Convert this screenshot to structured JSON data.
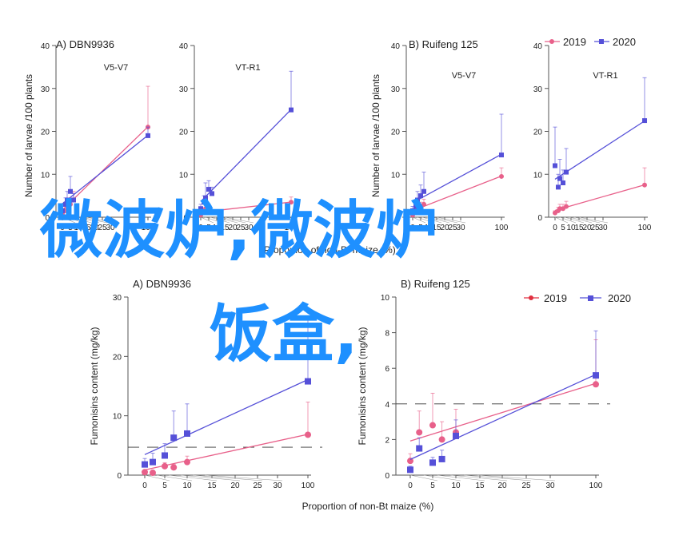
{
  "colors": {
    "series_2019": "#e8608a",
    "series_2020": "#5550d8",
    "overlay": "#1e90ff",
    "axis": "#555555"
  },
  "legend": {
    "items": [
      {
        "label": "2019",
        "color": "#e8608a",
        "marker": "circle"
      },
      {
        "label": "2020",
        "color": "#5550d8",
        "marker": "square"
      }
    ]
  },
  "overlay": {
    "line1": "微波炉,微波炉",
    "line2": "饭盒,"
  },
  "chart_data": [
    {
      "type": "line",
      "panel": "A) DBN9936",
      "subtitle": "V5-V7",
      "ylabel": "Number of larvae /100 plants",
      "xlabel": "Proportion of non-Bt maize (%)",
      "ylim": [
        0,
        40
      ],
      "yticks": [
        0,
        10,
        20,
        30,
        40
      ],
      "xticks": [
        "0",
        "5",
        "10",
        "15",
        "20",
        "25",
        "30",
        "100"
      ],
      "series": [
        {
          "name": "2019",
          "x": [
            0,
            2,
            3,
            5,
            7,
            100
          ],
          "y": [
            0.8,
            1.5,
            2.5,
            3.0,
            4.0,
            21.0
          ],
          "err": [
            0.6,
            1.0,
            1.2,
            1.5,
            2.0,
            9.5
          ]
        },
        {
          "name": "2020",
          "x": [
            0,
            2,
            3,
            5,
            7,
            100
          ],
          "y": [
            1.5,
            3.0,
            4.0,
            6.0,
            4.0,
            19.0
          ],
          "err": [
            1.0,
            1.5,
            2.0,
            3.5,
            1.5,
            2.0
          ]
        }
      ]
    },
    {
      "type": "line",
      "panel": "",
      "subtitle": "VT-R1",
      "ylabel": "",
      "xlabel": "Proportion of non-Bt maize (%)",
      "ylim": [
        0,
        40
      ],
      "yticks": [
        0,
        10,
        20,
        30,
        40
      ],
      "xticks": [
        "0",
        "5",
        "10",
        "15",
        "20",
        "25",
        "30",
        "100"
      ],
      "series": [
        {
          "name": "2019",
          "x": [
            0,
            2,
            3,
            5,
            7,
            100
          ],
          "y": [
            0.5,
            1.0,
            2.0,
            1.5,
            1.2,
            3.5
          ],
          "err": [
            0.3,
            0.6,
            0.8,
            0.5,
            0.5,
            1.2
          ]
        },
        {
          "name": "2020",
          "x": [
            0,
            2,
            3,
            5,
            7,
            100
          ],
          "y": [
            2.0,
            3.5,
            4.5,
            6.5,
            5.5,
            25.0
          ],
          "err": [
            1.0,
            1.5,
            3.5,
            2.0,
            1.5,
            9.0
          ]
        }
      ]
    },
    {
      "type": "line",
      "panel": "B) Ruifeng 125",
      "subtitle": "V5-V7",
      "ylabel": "Number of larvae /100 plants",
      "xlabel": "",
      "ylim": [
        0,
        40
      ],
      "yticks": [
        0,
        10,
        20,
        30,
        40
      ],
      "xticks": [
        "0",
        "5",
        "10",
        "15",
        "20",
        "25",
        "30",
        "100"
      ],
      "series": [
        {
          "name": "2019",
          "x": [
            0,
            2,
            3,
            5,
            7,
            100
          ],
          "y": [
            0.5,
            1.0,
            2.0,
            2.5,
            3.0,
            9.5
          ],
          "err": [
            0.4,
            0.6,
            1.0,
            1.0,
            1.2,
            2.0
          ]
        },
        {
          "name": "2020",
          "x": [
            0,
            2,
            3,
            5,
            7,
            100
          ],
          "y": [
            1.5,
            2.5,
            4.0,
            5.0,
            6.0,
            14.5
          ],
          "err": [
            1.0,
            1.5,
            2.0,
            2.5,
            4.5,
            9.5
          ]
        }
      ]
    },
    {
      "type": "line",
      "panel": "",
      "subtitle": "VT-R1",
      "ylabel": "",
      "xlabel": "",
      "ylim": [
        0,
        40
      ],
      "yticks": [
        0,
        10,
        20,
        30,
        40
      ],
      "xticks": [
        "0",
        "5",
        "10",
        "15",
        "20",
        "25",
        "30",
        "100"
      ],
      "series": [
        {
          "name": "2019",
          "x": [
            0,
            2,
            3,
            5,
            7,
            100
          ],
          "y": [
            1.0,
            1.5,
            2.0,
            2.0,
            2.5,
            7.5
          ],
          "err": [
            0.5,
            0.8,
            1.0,
            1.0,
            1.2,
            4.0
          ]
        },
        {
          "name": "2020",
          "x": [
            0,
            2,
            3,
            5,
            7,
            100
          ],
          "y": [
            12.0,
            7.0,
            9.0,
            8.0,
            10.5,
            22.5
          ],
          "err": [
            9.0,
            3.0,
            4.5,
            3.0,
            5.5,
            10.0
          ]
        }
      ]
    },
    {
      "type": "line",
      "panel": "A) DBN9936",
      "subtitle": "",
      "ylabel": "Fumonisins content (mg/kg)",
      "xlabel": "Proportion of non-Bt maize (%)",
      "ylim": [
        0,
        30
      ],
      "yticks": [
        0,
        10,
        20,
        30
      ],
      "xticks": [
        "0",
        "5",
        "10",
        "15",
        "20",
        "25",
        "30",
        "100"
      ],
      "threshold": 4.7,
      "series": [
        {
          "name": "2019",
          "x": [
            0,
            2,
            5,
            7,
            10,
            100
          ],
          "y": [
            0.5,
            0.4,
            1.5,
            1.3,
            2.2,
            6.8
          ],
          "err": [
            0.3,
            0.2,
            0.6,
            0.5,
            1.0,
            5.5
          ]
        },
        {
          "name": "2020",
          "x": [
            0,
            2,
            5,
            7,
            10,
            100
          ],
          "y": [
            1.8,
            2.2,
            3.3,
            6.3,
            7.0,
            15.8
          ],
          "err": [
            1.0,
            1.5,
            2.0,
            4.5,
            5.0,
            11.0
          ]
        }
      ]
    },
    {
      "type": "line",
      "panel": "B) Ruifeng 125",
      "subtitle": "",
      "ylabel": "Fumonisins content (mg/kg)",
      "xlabel": "",
      "ylim": [
        0,
        10
      ],
      "yticks": [
        0,
        2,
        4,
        6,
        8,
        10
      ],
      "xticks": [
        "0",
        "5",
        "10",
        "15",
        "20",
        "25",
        "30",
        "100"
      ],
      "threshold": 4.0,
      "series": [
        {
          "name": "2019",
          "x": [
            0,
            2,
            5,
            7,
            10,
            100
          ],
          "y": [
            0.8,
            2.4,
            2.8,
            2.0,
            2.4,
            5.1
          ],
          "err": [
            0.4,
            1.2,
            1.8,
            1.0,
            1.3,
            2.5
          ]
        },
        {
          "name": "2020",
          "x": [
            0,
            2,
            5,
            7,
            10,
            100
          ],
          "y": [
            0.3,
            1.5,
            0.7,
            0.9,
            2.2,
            5.6
          ],
          "err": [
            0.2,
            0.6,
            0.3,
            0.5,
            0.9,
            2.5
          ]
        }
      ]
    }
  ]
}
